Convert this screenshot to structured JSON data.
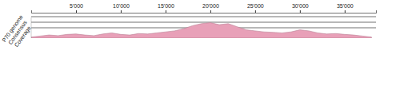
{
  "chart_data": {
    "type": "area",
    "track_labels": [
      "P70 genome",
      "Consensus",
      "Coverage"
    ],
    "x": [
      0,
      1000,
      2000,
      3000,
      4000,
      5000,
      6000,
      7000,
      8000,
      9000,
      10000,
      11000,
      12000,
      13000,
      14000,
      15000,
      16000,
      17000,
      18000,
      19000,
      20000,
      21000,
      22000,
      23000,
      24000,
      25000,
      26000,
      27000,
      28000,
      29000,
      30000,
      31000,
      32000,
      33000,
      34000,
      35000,
      36000,
      37000,
      38000
    ],
    "values": [
      5,
      10,
      15,
      12,
      18,
      20,
      15,
      12,
      20,
      25,
      18,
      15,
      22,
      20,
      25,
      30,
      35,
      45,
      60,
      70,
      75,
      65,
      70,
      55,
      40,
      35,
      30,
      28,
      25,
      30,
      40,
      35,
      25,
      20,
      22,
      18,
      15,
      10,
      5
    ],
    "color": "#e8a0b8",
    "xlim": [
      0,
      38500
    ],
    "xticks": [
      {
        "value": 5000,
        "label": "5'000"
      },
      {
        "value": 10000,
        "label": "10'000"
      },
      {
        "value": 15000,
        "label": "15'000"
      },
      {
        "value": 20000,
        "label": "20'000"
      },
      {
        "value": 25000,
        "label": "25'000"
      },
      {
        "value": 30000,
        "label": "30'000"
      },
      {
        "value": 35000,
        "label": "35'000"
      }
    ],
    "ylim": [
      0,
      100
    ],
    "tick_labels": "x"
  }
}
